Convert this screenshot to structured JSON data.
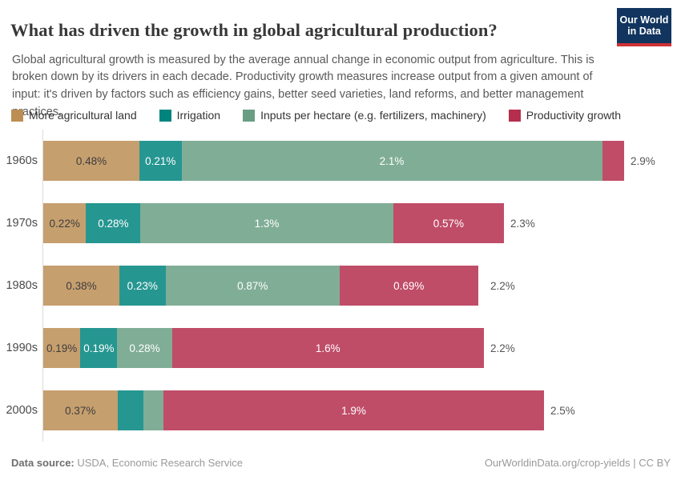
{
  "header": {
    "title": "What has driven the growth in global agricultural production?",
    "subtitle": "Global agricultural growth is measured by the average annual change in economic output from agriculture. This is broken down by its drivers in each decade. Productivity growth measures increase output from a given amount of input: it's driven by factors such as efficiency gains, better seed varieties, land reforms, and better management practices.",
    "logo": {
      "line1": "Our World",
      "line2": "in Data",
      "bg_color": "#12355f",
      "stripe_color": "#cf3235"
    }
  },
  "chart_data": {
    "type": "bar",
    "orientation": "horizontal",
    "stacked": true,
    "unit": "%",
    "xmax": 2.9,
    "grid": false,
    "legend_position": "top",
    "categories": [
      "1960s",
      "1970s",
      "1980s",
      "1990s",
      "2000s"
    ],
    "series": [
      {
        "name": "More agricultural land",
        "color": "#BC8E54",
        "label_color": "#3d3d3d",
        "values": [
          0.48,
          0.22,
          0.38,
          0.19,
          0.37
        ],
        "labels": [
          "0.48%",
          "0.22%",
          "0.38%",
          "0.19%",
          "0.37%"
        ]
      },
      {
        "name": "Irrigation",
        "color": "#00847E",
        "label_color": "#ffffff",
        "values": [
          0.21,
          0.28,
          0.23,
          0.19,
          0.13
        ],
        "labels": [
          "0.21%",
          "0.28%",
          "0.23%",
          "0.19%",
          ""
        ]
      },
      {
        "name": "Inputs per hectare (e.g. fertilizers, machinery)",
        "color": "#6A9E83",
        "label_color": "#ffffff",
        "values": [
          2.1,
          1.3,
          0.87,
          0.28,
          0.1
        ],
        "labels": [
          "2.1%",
          "1.3%",
          "0.87%",
          "0.28%",
          ""
        ]
      },
      {
        "name": "Productivity growth",
        "color": "#B52E4D",
        "label_color": "#ffffff",
        "values": [
          0.11,
          0.57,
          0.69,
          1.6,
          1.9
        ],
        "labels": [
          "",
          "0.57%",
          "0.69%",
          "1.6%",
          "1.9%"
        ]
      }
    ],
    "totals": [
      2.9,
      2.3,
      2.2,
      2.2,
      2.5
    ],
    "total_labels": [
      "2.9%",
      "2.3%",
      "2.2%",
      "2.2%",
      "2.5%"
    ],
    "bar_opacity": 0.85
  },
  "footer": {
    "source_label": "Data source:",
    "source_value": " USDA, Economic Research Service",
    "right_text": "OurWorldinData.org/crop-yields | CC BY"
  }
}
